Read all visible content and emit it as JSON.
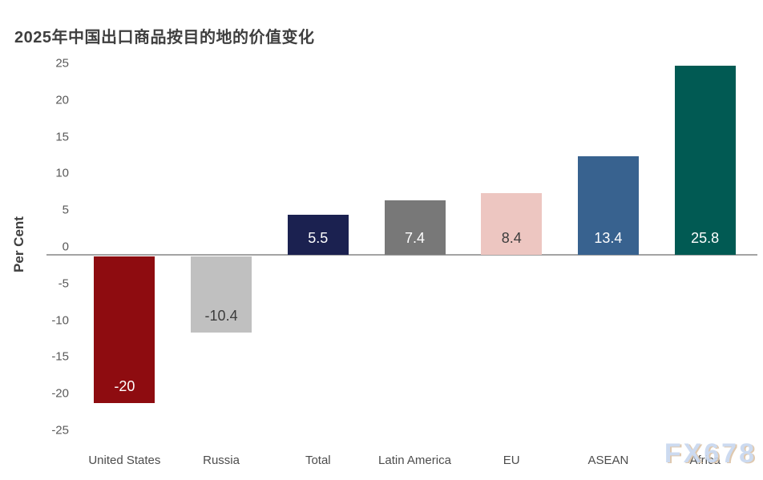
{
  "title": "2025年中国出口商品按目的地的价值变化",
  "watermark": "FX678",
  "chart_data": {
    "type": "bar",
    "title": "2025年中国出口商品按目的地的价值变化",
    "xlabel": "",
    "ylabel": "Per Cent",
    "ylim": [
      -25,
      25
    ],
    "yticks": [
      25,
      20,
      15,
      10,
      5,
      0,
      -5,
      -10,
      -15,
      -20,
      -25
    ],
    "grid": false,
    "legend_position": "none",
    "categories": [
      "United States",
      "Russia",
      "Total",
      "Latin America",
      "EU",
      "ASEAN",
      "Africa"
    ],
    "values": [
      -20,
      -10.4,
      5.5,
      7.4,
      8.4,
      13.4,
      25.8
    ],
    "value_labels": [
      "-20",
      "-10.4",
      "5.5",
      "7.4",
      "8.4",
      "13.4",
      "25.8"
    ],
    "bar_colors": [
      "#8e0c10",
      "#c0c0c0",
      "#1b2150",
      "#787878",
      "#edc6c1",
      "#38628f",
      "#015a53"
    ],
    "value_label_colors": [
      "#ffffff",
      "#3c3c3c",
      "#ffffff",
      "#ffffff",
      "#3c3c3c",
      "#ffffff",
      "#ffffff"
    ],
    "axis_line_color": "#a3a3a3",
    "tick_label_color": "#595959",
    "category_label_color": "#4c4c4c",
    "title_color": "#3f3f3f",
    "watermark_colors": [
      "#c7d7ef",
      "#dcc3a6"
    ]
  }
}
